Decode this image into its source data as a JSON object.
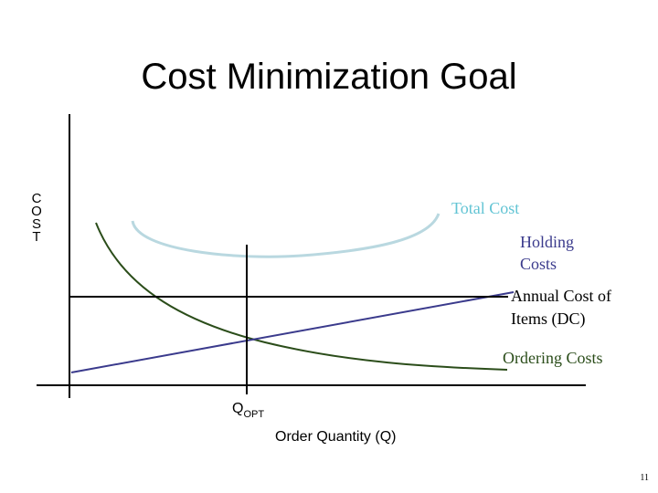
{
  "title": "Cost Minimization Goal",
  "y_axis_label": "COST",
  "x_axis_label": "Order Quantity (Q)",
  "q_opt": {
    "main": "Q",
    "sub": "OPT"
  },
  "curve_labels": {
    "total_cost": [
      "Total Cost"
    ],
    "holding_costs": [
      "Holding",
      "Costs"
    ],
    "annual_cost": [
      "Annual Cost of",
      "Items (DC)"
    ],
    "ordering_costs": [
      "Ordering Costs"
    ]
  },
  "page_number": "11"
}
